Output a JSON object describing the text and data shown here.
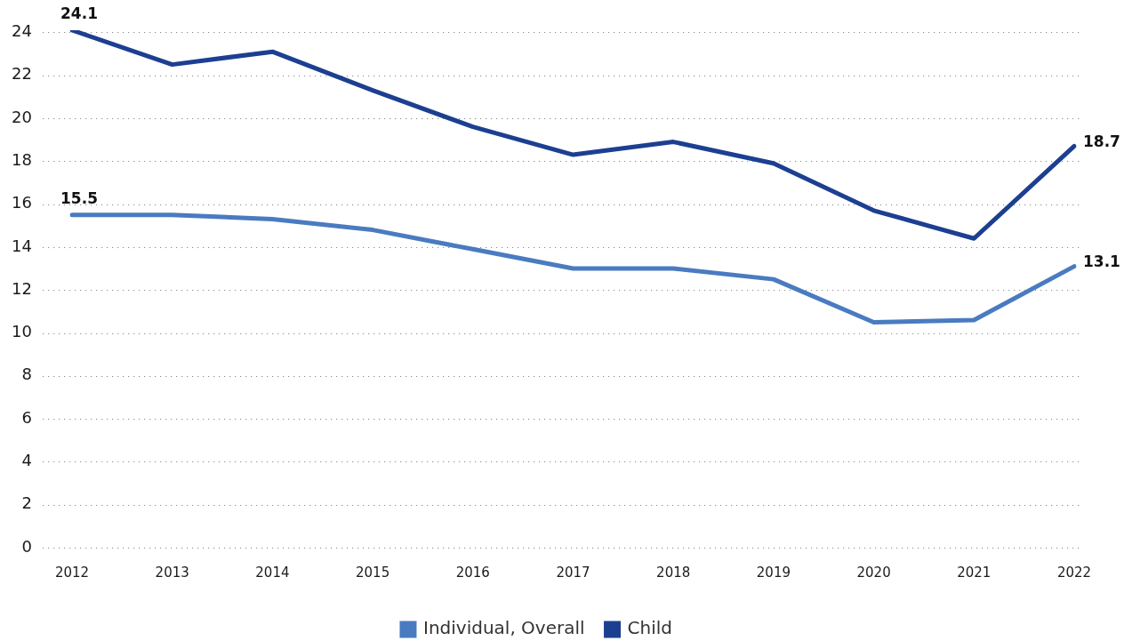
{
  "chart_data": {
    "type": "line",
    "categories": [
      "2012",
      "2013",
      "2014",
      "2015",
      "2016",
      "2017",
      "2018",
      "2019",
      "2020",
      "2021",
      "2022"
    ],
    "series": [
      {
        "name": "Individual, Overall",
        "color": "#4a7bc0",
        "values": [
          15.5,
          15.5,
          15.3,
          14.8,
          13.9,
          13.0,
          13.0,
          12.5,
          10.5,
          10.6,
          13.1
        ],
        "value_labels": [
          "15.5",
          null,
          null,
          null,
          null,
          null,
          null,
          null,
          null,
          null,
          "13.1"
        ]
      },
      {
        "name": "Child",
        "color": "#1c3f91",
        "values": [
          24.1,
          22.5,
          23.1,
          21.3,
          19.6,
          18.3,
          18.9,
          17.9,
          15.7,
          14.4,
          18.7
        ],
        "value_labels": [
          "24.1",
          null,
          null,
          null,
          null,
          null,
          null,
          null,
          null,
          null,
          "18.7"
        ]
      }
    ],
    "ylim": [
      0,
      24.1
    ],
    "yticks": [
      0,
      2,
      4,
      6,
      8,
      10,
      12,
      14,
      16,
      18,
      20,
      22,
      24
    ],
    "grid": "y",
    "legend": "bottom",
    "marker": "none",
    "line_style": "solid"
  }
}
